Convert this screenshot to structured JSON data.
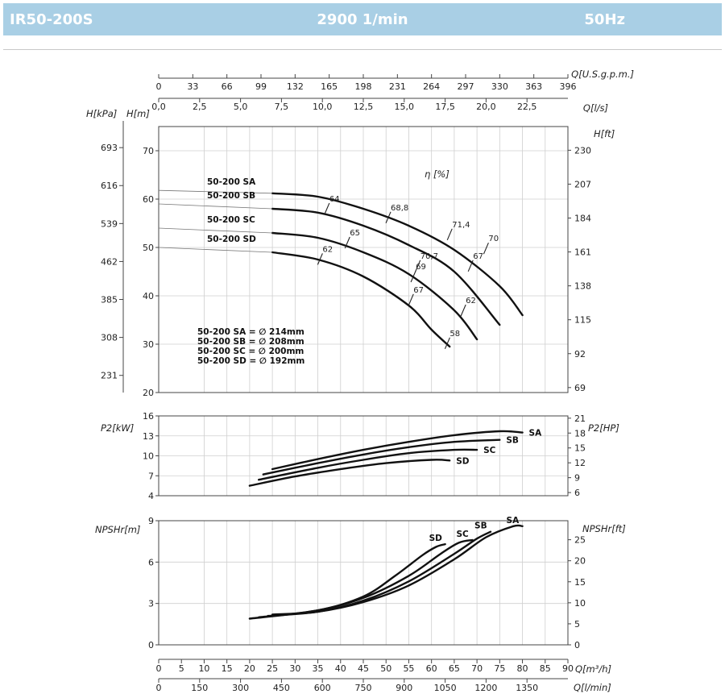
{
  "header": {
    "model": "IR50-200S",
    "speed": "2900 1/min",
    "freq": "50Hz"
  },
  "colors": {
    "header_bg": "#a9cfe5",
    "curve": "#111111",
    "grid": "#cfcfcf"
  },
  "chart_data": [
    {
      "type": "line",
      "axes": {
        "top_q_gpm": {
          "label": "Q[U.S.g.p.m.]",
          "ticks": [
            "0",
            "33",
            "66",
            "99",
            "132",
            "165",
            "198",
            "231",
            "264",
            "297",
            "330",
            "363",
            "396"
          ]
        },
        "top_q_ls": {
          "label": "Q[l/s]",
          "ticks": [
            "0,0",
            "2,5",
            "5,0",
            "7,5",
            "10,0",
            "12,5",
            "15,0",
            "17,5",
            "20,0",
            "22,5"
          ]
        },
        "left_h_m": {
          "label": "H[m]",
          "ticks": [
            "20",
            "30",
            "40",
            "50",
            "60",
            "70"
          ]
        },
        "left_h_kpa": {
          "label": "H[kPa]",
          "ticks": [
            "231",
            "308",
            "385",
            "462",
            "539",
            "616",
            "693"
          ]
        },
        "right_h_ft": {
          "label": "H[ft]",
          "ticks": [
            "69",
            "92",
            "115",
            "138",
            "161",
            "184",
            "207",
            "230"
          ]
        },
        "ylim_m": [
          20,
          75
        ]
      },
      "efficiency_label": "η [%]",
      "series": [
        {
          "name": "50-200 SA",
          "x": [
            25,
            35,
            45,
            55,
            65,
            75,
            80
          ],
          "y": [
            61.2,
            60.5,
            58,
            54.5,
            49.5,
            42,
            36
          ]
        },
        {
          "name": "50-200 SB",
          "x": [
            25,
            35,
            45,
            55,
            65,
            75
          ],
          "y": [
            58,
            57.2,
            54.5,
            50.5,
            45,
            34
          ]
        },
        {
          "name": "50-200 SC",
          "x": [
            25,
            35,
            45,
            55,
            65,
            70
          ],
          "y": [
            53,
            52,
            49,
            44.5,
            37,
            31
          ]
        },
        {
          "name": "50-200 SD",
          "x": [
            25,
            35,
            45,
            55,
            60,
            64
          ],
          "y": [
            49,
            47.5,
            44,
            38,
            33,
            29.5
          ]
        }
      ],
      "efficiency_marks": [
        {
          "label": "64",
          "x": 37,
          "y": 58
        },
        {
          "label": "68,8",
          "x": 50.5,
          "y": 56.2
        },
        {
          "label": "71,4",
          "x": 64,
          "y": 52.7
        },
        {
          "label": "70",
          "x": 72,
          "y": 49.8
        },
        {
          "label": "65",
          "x": 41.5,
          "y": 51
        },
        {
          "label": "70,7",
          "x": 57,
          "y": 46.2
        },
        {
          "label": "67",
          "x": 68.6,
          "y": 46.2
        },
        {
          "label": "62",
          "x": 35.5,
          "y": 47.6
        },
        {
          "label": "69",
          "x": 56,
          "y": 44
        },
        {
          "label": "67",
          "x": 55.5,
          "y": 39.2
        },
        {
          "label": "62",
          "x": 67,
          "y": 37
        },
        {
          "label": "58",
          "x": 63.5,
          "y": 30.2
        }
      ],
      "legend": [
        "50-200 SA = ∅ 214mm",
        "50-200 SB = ∅ 208mm",
        "50-200 SC = ∅ 200mm",
        "50-200 SD = ∅ 192mm"
      ]
    },
    {
      "type": "line",
      "ylabel_left": "P2[kW]",
      "ylabel_right": "P2[HP]",
      "left_ticks": [
        "4",
        "7",
        "10",
        "13",
        "16"
      ],
      "right_ticks": [
        "6",
        "9",
        "12",
        "15",
        "18",
        "21"
      ],
      "ylim": [
        4,
        16
      ],
      "series": [
        {
          "name": "SA",
          "x": [
            25,
            35,
            45,
            55,
            65,
            75,
            80
          ],
          "y": [
            8,
            9.5,
            10.9,
            12.1,
            13.1,
            13.7,
            13.5
          ]
        },
        {
          "name": "SB",
          "x": [
            23,
            35,
            45,
            55,
            65,
            75
          ],
          "y": [
            7.2,
            8.9,
            10.2,
            11.3,
            12.1,
            12.4
          ]
        },
        {
          "name": "SC",
          "x": [
            22,
            35,
            45,
            55,
            65,
            70
          ],
          "y": [
            6.4,
            8.2,
            9.4,
            10.4,
            10.9,
            10.9
          ]
        },
        {
          "name": "SD",
          "x": [
            20,
            30,
            40,
            50,
            60,
            64
          ],
          "y": [
            5.5,
            6.9,
            8,
            8.9,
            9.4,
            9.3
          ]
        }
      ]
    },
    {
      "type": "line",
      "ylabel_left": "NPSHr[m]",
      "ylabel_right": "NPSHr[ft]",
      "left_ticks": [
        "0",
        "3",
        "6",
        "9"
      ],
      "right_ticks": [
        "0",
        "5",
        "10",
        "15",
        "20",
        "25"
      ],
      "ylim": [
        0,
        9
      ],
      "series": [
        {
          "name": "SA",
          "x": [
            25,
            35,
            45,
            55,
            65,
            72,
            78,
            80
          ],
          "y": [
            2.2,
            2.4,
            3.1,
            4.3,
            6.2,
            7.8,
            8.6,
            8.6
          ]
        },
        {
          "name": "SB",
          "x": [
            24,
            35,
            45,
            55,
            65,
            70,
            73
          ],
          "y": [
            2.1,
            2.4,
            3.2,
            4.6,
            6.6,
            7.7,
            8.2
          ]
        },
        {
          "name": "SC",
          "x": [
            22,
            35,
            45,
            55,
            62,
            66,
            69
          ],
          "y": [
            2.0,
            2.5,
            3.4,
            5.0,
            6.6,
            7.4,
            7.6
          ]
        },
        {
          "name": "SD",
          "x": [
            20,
            35,
            45,
            52,
            58,
            61,
            63
          ],
          "y": [
            1.9,
            2.5,
            3.5,
            5.0,
            6.5,
            7.1,
            7.3
          ]
        }
      ],
      "x_axis": {
        "q_m3h": {
          "label": "Q[m³/h]",
          "ticks": [
            "0",
            "5",
            "10",
            "15",
            "20",
            "25",
            "30",
            "35",
            "40",
            "45",
            "50",
            "55",
            "60",
            "65",
            "70",
            "75",
            "80",
            "85",
            "90"
          ]
        },
        "q_lmin": {
          "label": "Q[l/min]",
          "ticks": [
            "0",
            "150",
            "300",
            "450",
            "600",
            "750",
            "900",
            "1050",
            "1200",
            "1350"
          ]
        }
      }
    }
  ]
}
